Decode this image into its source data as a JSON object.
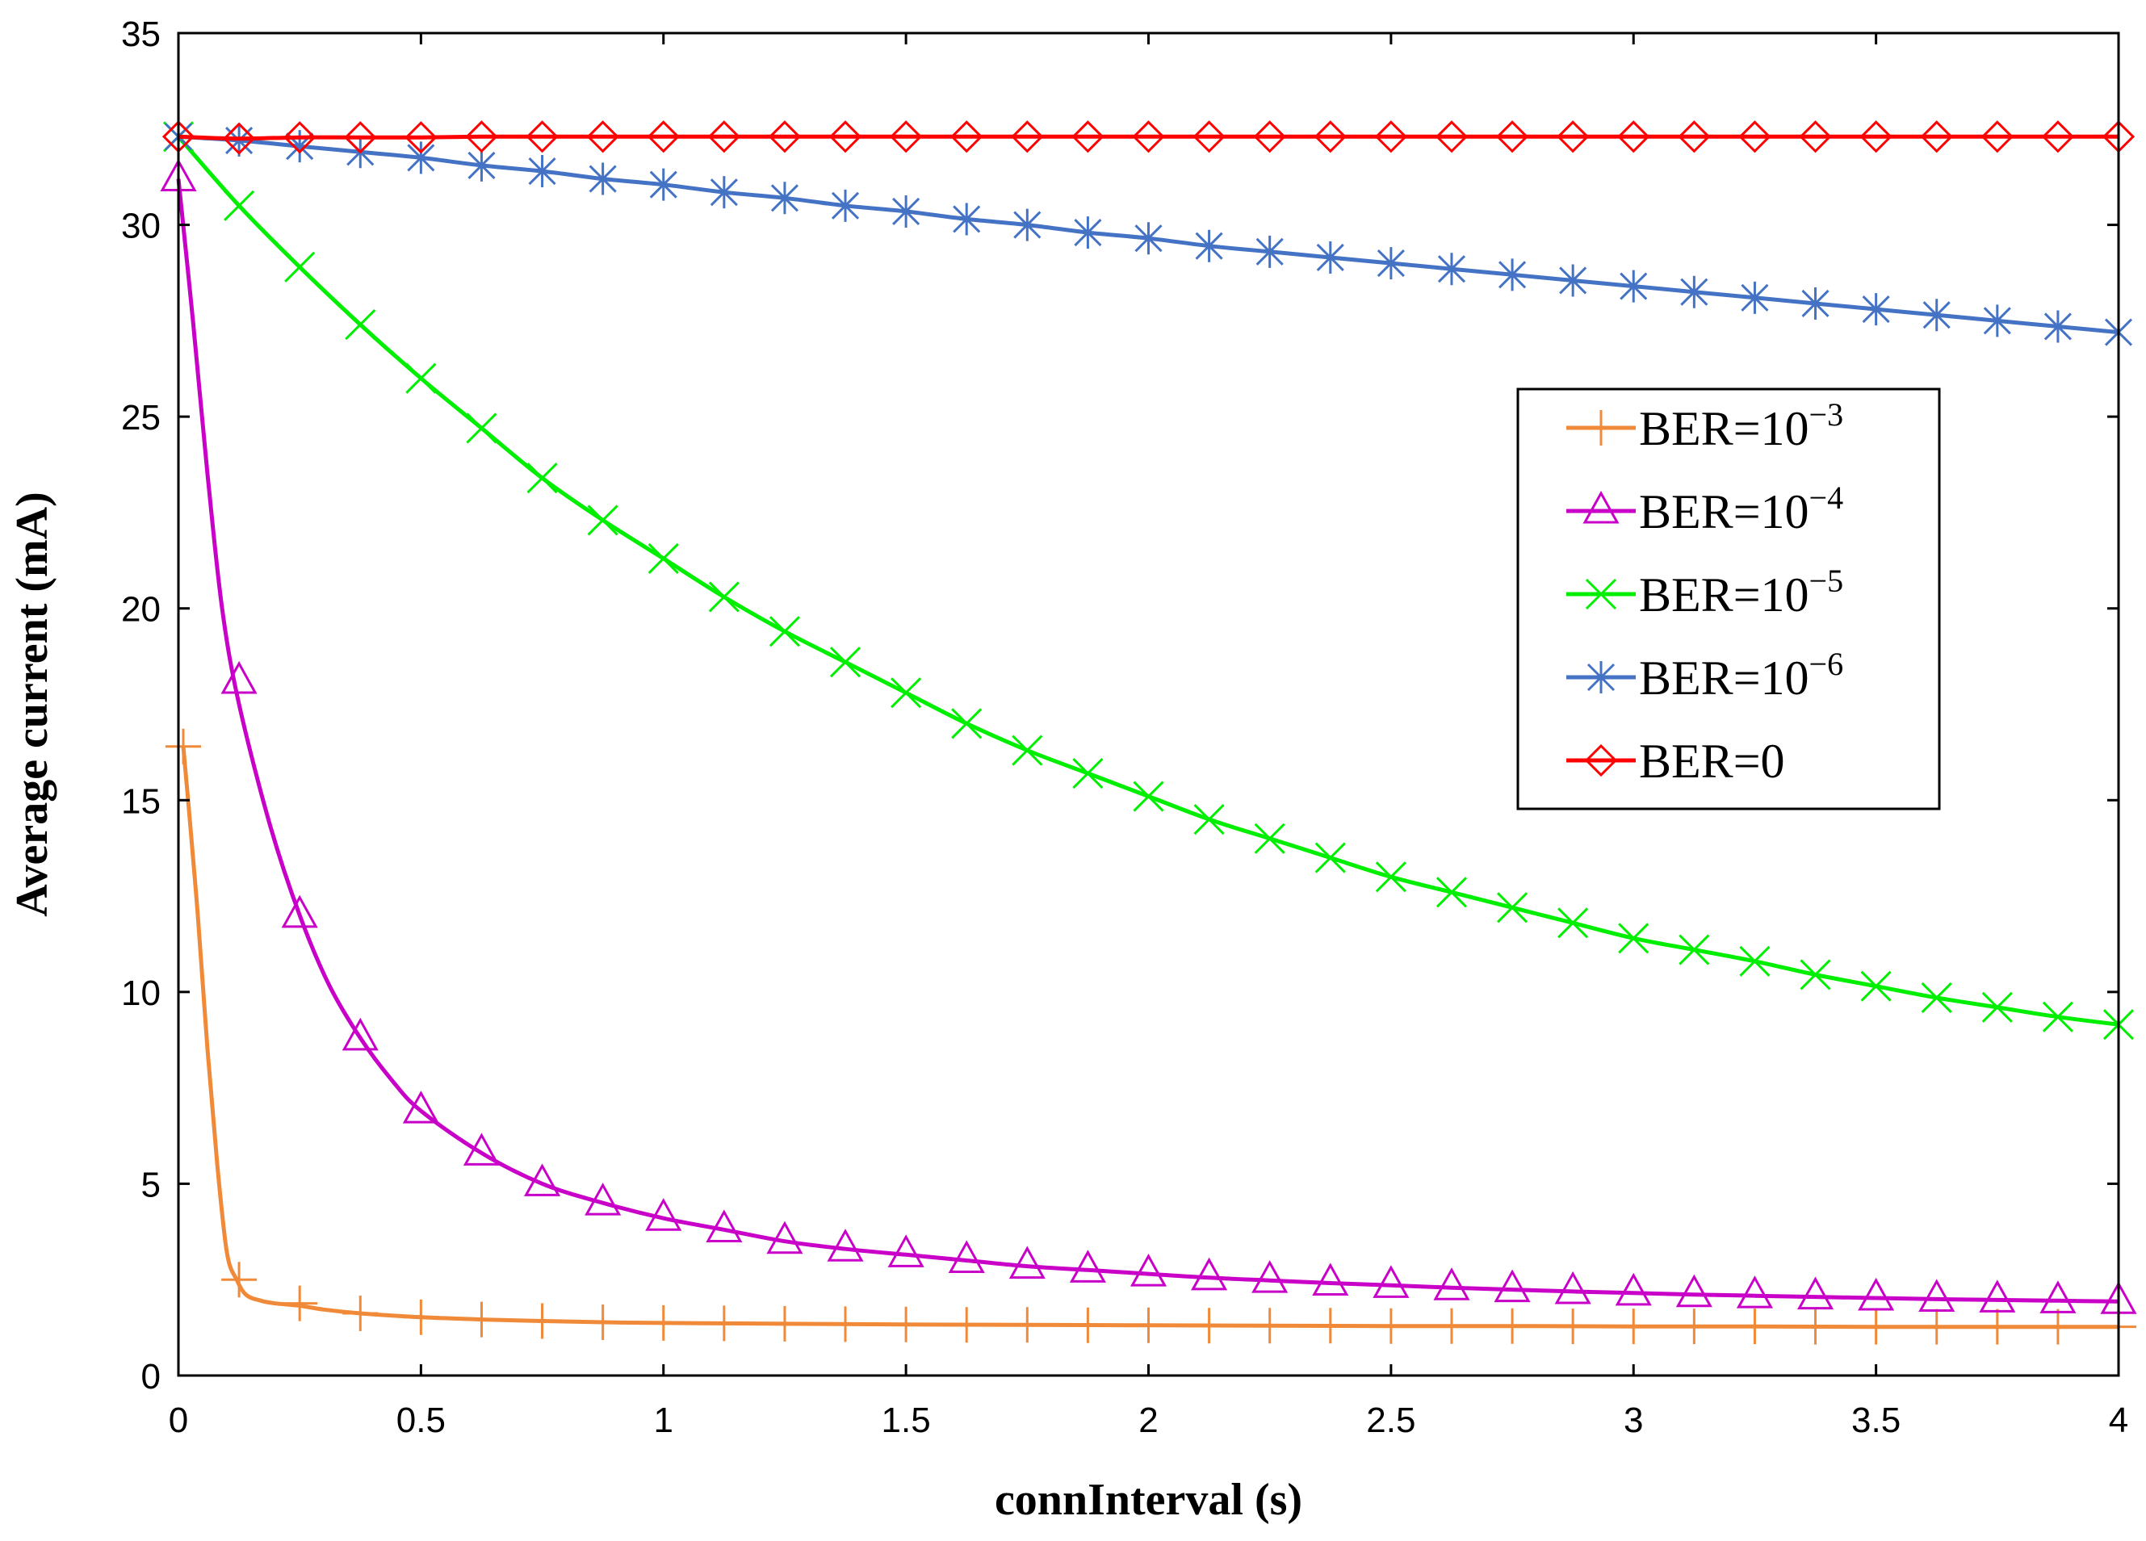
{
  "chart_data": {
    "type": "line",
    "title": "",
    "xlabel": "connInterval (s)",
    "ylabel": "Average current (mA)",
    "xlim": [
      0,
      4
    ],
    "ylim": [
      0,
      35
    ],
    "xticks": [
      0,
      0.5,
      1,
      1.5,
      2,
      2.5,
      3,
      3.5,
      4
    ],
    "xtick_labels": [
      "0",
      "0.5",
      "1",
      "1.5",
      "2",
      "2.5",
      "3",
      "3.5",
      "4"
    ],
    "yticks": [
      0,
      5,
      10,
      15,
      20,
      25,
      30,
      35
    ],
    "ytick_labels": [
      "0",
      "5",
      "10",
      "15",
      "20",
      "25",
      "30",
      "35"
    ],
    "grid": false,
    "legend_position": "right",
    "series": [
      {
        "name": "BER=10⁻³",
        "label_base": "BER=10",
        "label_sup": "−3",
        "color": "#f08a38",
        "marker": "plus",
        "x": [
          0.01,
          0.02,
          0.04,
          0.06,
          0.08,
          0.1,
          0.12,
          0.14,
          0.17,
          0.2,
          0.25,
          0.3,
          0.375,
          0.5,
          0.625,
          0.75,
          0.875,
          1,
          1.25,
          1.5,
          1.75,
          2,
          2.25,
          2.5,
          2.75,
          3,
          3.25,
          3.5,
          3.75,
          4
        ],
        "y": [
          16.4,
          15.0,
          12.0,
          8.5,
          5.5,
          3.2,
          2.5,
          2.1,
          1.95,
          1.88,
          1.82,
          1.72,
          1.62,
          1.52,
          1.46,
          1.42,
          1.39,
          1.37,
          1.35,
          1.33,
          1.32,
          1.31,
          1.3,
          1.29,
          1.29,
          1.28,
          1.28,
          1.27,
          1.27,
          1.27
        ],
        "marker_x": [
          0.01,
          0.125,
          0.25,
          0.375,
          0.5,
          0.625,
          0.75,
          0.875,
          1,
          1.125,
          1.25,
          1.375,
          1.5,
          1.625,
          1.75,
          1.875,
          2,
          2.125,
          2.25,
          2.375,
          2.5,
          2.625,
          2.75,
          2.875,
          3,
          3.125,
          3.25,
          3.375,
          3.5,
          3.625,
          3.75,
          3.875,
          4
        ],
        "marker_y": [
          16.4,
          2.5,
          1.88,
          1.62,
          1.52,
          1.46,
          1.42,
          1.39,
          1.37,
          1.36,
          1.35,
          1.34,
          1.33,
          1.32,
          1.32,
          1.31,
          1.31,
          1.3,
          1.3,
          1.3,
          1.29,
          1.29,
          1.29,
          1.28,
          1.28,
          1.28,
          1.28,
          1.27,
          1.27,
          1.27,
          1.27,
          1.27,
          1.27
        ]
      },
      {
        "name": "BER=10⁻⁴",
        "label_base": "BER=10",
        "label_sup": "−4",
        "color": "#c800c8",
        "marker": "triangle",
        "x": [
          0,
          0.03,
          0.06,
          0.09,
          0.125,
          0.19,
          0.25,
          0.31,
          0.375,
          0.44,
          0.5,
          0.625,
          0.75,
          0.875,
          1,
          1.125,
          1.25,
          1.375,
          1.5,
          1.625,
          1.75,
          1.875,
          2,
          2.125,
          2.25,
          2.375,
          2.5,
          2.625,
          2.75,
          2.875,
          3,
          3.125,
          3.25,
          3.375,
          3.5,
          3.625,
          3.75,
          3.875,
          4
        ],
        "y": [
          31.2,
          27.5,
          23.5,
          20.0,
          17.5,
          14.3,
          12.0,
          10.2,
          8.8,
          7.7,
          6.9,
          5.8,
          5.0,
          4.5,
          4.1,
          3.8,
          3.5,
          3.3,
          3.15,
          3.0,
          2.85,
          2.75,
          2.65,
          2.55,
          2.48,
          2.41,
          2.35,
          2.29,
          2.24,
          2.19,
          2.15,
          2.11,
          2.08,
          2.05,
          2.02,
          1.99,
          1.97,
          1.95,
          1.93
        ],
        "marker_x": [
          0,
          0.125,
          0.25,
          0.375,
          0.5,
          0.625,
          0.75,
          0.875,
          1,
          1.125,
          1.25,
          1.375,
          1.5,
          1.625,
          1.75,
          1.875,
          2,
          2.125,
          2.25,
          2.375,
          2.5,
          2.625,
          2.75,
          2.875,
          3,
          3.125,
          3.25,
          3.375,
          3.5,
          3.625,
          3.75,
          3.875,
          4
        ],
        "marker_y": [
          31.2,
          18.1,
          12.0,
          8.8,
          6.9,
          5.8,
          5.0,
          4.5,
          4.1,
          3.8,
          3.5,
          3.3,
          3.15,
          3.0,
          2.85,
          2.75,
          2.65,
          2.55,
          2.48,
          2.41,
          2.35,
          2.29,
          2.24,
          2.19,
          2.15,
          2.11,
          2.08,
          2.05,
          2.02,
          1.99,
          1.97,
          1.95,
          1.93
        ]
      },
      {
        "name": "BER=10⁻⁵",
        "label_base": "BER=10",
        "label_sup": "−5",
        "color": "#00ee00",
        "marker": "x",
        "x": [
          0,
          0.125,
          0.25,
          0.375,
          0.5,
          0.625,
          0.75,
          0.875,
          1,
          1.125,
          1.25,
          1.375,
          1.5,
          1.625,
          1.75,
          1.875,
          2,
          2.125,
          2.25,
          2.375,
          2.5,
          2.625,
          2.75,
          2.875,
          3,
          3.125,
          3.25,
          3.375,
          3.5,
          3.625,
          3.75,
          3.875,
          4
        ],
        "y": [
          32.3,
          30.5,
          28.9,
          27.4,
          26.0,
          24.7,
          23.4,
          22.3,
          21.3,
          20.3,
          19.4,
          18.6,
          17.8,
          17.0,
          16.3,
          15.7,
          15.1,
          14.5,
          14.0,
          13.5,
          13.0,
          12.6,
          12.2,
          11.8,
          11.4,
          11.1,
          10.8,
          10.45,
          10.15,
          9.85,
          9.6,
          9.35,
          9.15
        ],
        "marker_x": [
          0,
          0.125,
          0.25,
          0.375,
          0.5,
          0.625,
          0.75,
          0.875,
          1,
          1.125,
          1.25,
          1.375,
          1.5,
          1.625,
          1.75,
          1.875,
          2,
          2.125,
          2.25,
          2.375,
          2.5,
          2.625,
          2.75,
          2.875,
          3,
          3.125,
          3.25,
          3.375,
          3.5,
          3.625,
          3.75,
          3.875,
          4
        ],
        "marker_y": [
          32.3,
          30.5,
          28.9,
          27.4,
          26.0,
          24.7,
          23.4,
          22.3,
          21.3,
          20.3,
          19.4,
          18.6,
          17.8,
          17.0,
          16.3,
          15.7,
          15.1,
          14.5,
          14.0,
          13.5,
          13.0,
          12.6,
          12.2,
          11.8,
          11.4,
          11.1,
          10.8,
          10.45,
          10.15,
          9.85,
          9.6,
          9.35,
          9.15
        ]
      },
      {
        "name": "BER=10⁻⁶",
        "label_base": "BER=10",
        "label_sup": "−6",
        "color": "#4472c4",
        "marker": "asterisk",
        "x": [
          0,
          0.125,
          0.25,
          0.375,
          0.5,
          0.625,
          0.75,
          0.875,
          1,
          1.125,
          1.25,
          1.375,
          1.5,
          1.625,
          1.75,
          1.875,
          2,
          2.125,
          2.25,
          2.375,
          2.5,
          2.625,
          2.75,
          2.875,
          3,
          3.125,
          3.25,
          3.375,
          3.5,
          3.625,
          3.75,
          3.875,
          4
        ],
        "y": [
          32.3,
          32.2,
          32.05,
          31.9,
          31.75,
          31.55,
          31.4,
          31.2,
          31.05,
          30.85,
          30.7,
          30.5,
          30.35,
          30.15,
          30.0,
          29.8,
          29.65,
          29.45,
          29.3,
          29.15,
          29.0,
          28.85,
          28.7,
          28.55,
          28.4,
          28.25,
          28.1,
          27.95,
          27.8,
          27.65,
          27.5,
          27.35,
          27.2
        ],
        "marker_x": [
          0,
          0.125,
          0.25,
          0.375,
          0.5,
          0.625,
          0.75,
          0.875,
          1,
          1.125,
          1.25,
          1.375,
          1.5,
          1.625,
          1.75,
          1.875,
          2,
          2.125,
          2.25,
          2.375,
          2.5,
          2.625,
          2.75,
          2.875,
          3,
          3.125,
          3.25,
          3.375,
          3.5,
          3.625,
          3.75,
          3.875,
          4
        ],
        "marker_y": [
          32.3,
          32.2,
          32.05,
          31.9,
          31.75,
          31.55,
          31.4,
          31.2,
          31.05,
          30.85,
          30.7,
          30.5,
          30.35,
          30.15,
          30.0,
          29.8,
          29.65,
          29.45,
          29.3,
          29.15,
          29.0,
          28.85,
          28.7,
          28.55,
          28.4,
          28.25,
          28.1,
          27.95,
          27.8,
          27.65,
          27.5,
          27.35,
          27.2
        ]
      },
      {
        "name": "BER=0",
        "label_base": "BER=0",
        "label_sup": "",
        "color": "#ff0000",
        "marker": "diamond",
        "x": [
          0,
          0.125,
          0.25,
          0.375,
          0.5,
          0.625,
          0.75,
          0.875,
          1,
          1.125,
          1.25,
          1.375,
          1.5,
          1.625,
          1.75,
          1.875,
          2,
          2.125,
          2.25,
          2.375,
          2.5,
          2.625,
          2.75,
          2.875,
          3,
          3.125,
          3.25,
          3.375,
          3.5,
          3.625,
          3.75,
          3.875,
          4
        ],
        "y": [
          32.3,
          32.25,
          32.28,
          32.28,
          32.28,
          32.3,
          32.3,
          32.3,
          32.3,
          32.3,
          32.3,
          32.3,
          32.3,
          32.3,
          32.3,
          32.3,
          32.3,
          32.3,
          32.3,
          32.3,
          32.3,
          32.3,
          32.3,
          32.3,
          32.3,
          32.3,
          32.3,
          32.3,
          32.3,
          32.3,
          32.3,
          32.3,
          32.3
        ],
        "marker_x": [
          0,
          0.125,
          0.25,
          0.375,
          0.5,
          0.625,
          0.75,
          0.875,
          1,
          1.125,
          1.25,
          1.375,
          1.5,
          1.625,
          1.75,
          1.875,
          2,
          2.125,
          2.25,
          2.375,
          2.5,
          2.625,
          2.75,
          2.875,
          3,
          3.125,
          3.25,
          3.375,
          3.5,
          3.625,
          3.75,
          3.875,
          4
        ],
        "marker_y": [
          32.3,
          32.25,
          32.28,
          32.28,
          32.28,
          32.3,
          32.3,
          32.3,
          32.3,
          32.3,
          32.3,
          32.3,
          32.3,
          32.3,
          32.3,
          32.3,
          32.3,
          32.3,
          32.3,
          32.3,
          32.3,
          32.3,
          32.3,
          32.3,
          32.3,
          32.3,
          32.3,
          32.3,
          32.3,
          32.3,
          32.3,
          32.3,
          32.3
        ]
      }
    ]
  }
}
